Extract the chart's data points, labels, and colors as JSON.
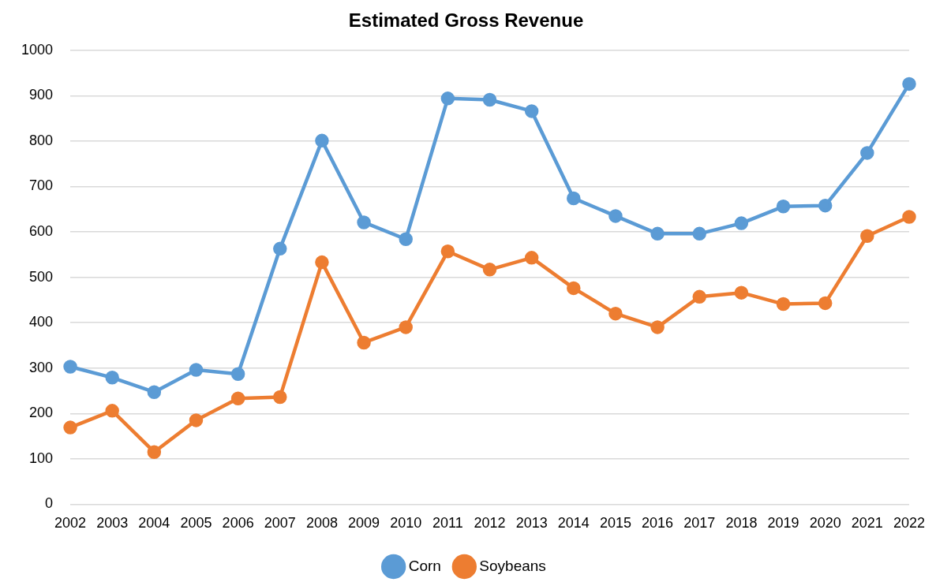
{
  "chart_data": {
    "type": "line",
    "title": "Estimated Gross Revenue",
    "categories": [
      "2002",
      "2003",
      "2004",
      "2005",
      "2006",
      "2007",
      "2008",
      "2009",
      "2010",
      "2011",
      "2012",
      "2013",
      "2014",
      "2015",
      "2016",
      "2017",
      "2018",
      "2019",
      "2020",
      "2021",
      "2022"
    ],
    "series": [
      {
        "name": "Corn",
        "color": "#5b9bd5",
        "values": [
          303,
          279,
          247,
          296,
          287,
          563,
          801,
          621,
          584,
          894,
          891,
          866,
          674,
          635,
          596,
          596,
          619,
          656,
          658,
          774,
          926
        ]
      },
      {
        "name": "Soybeans",
        "color": "#ed7d31",
        "values": [
          169,
          206,
          115,
          185,
          233,
          236,
          533,
          356,
          390,
          557,
          517,
          543,
          476,
          420,
          390,
          457,
          466,
          441,
          443,
          591,
          633
        ]
      }
    ],
    "ylim": [
      0,
      1000
    ],
    "yticks": [
      0,
      100,
      200,
      300,
      400,
      500,
      600,
      700,
      800,
      900,
      1000
    ],
    "grid": "y",
    "legend": "bottom",
    "marker": "circle",
    "line_style": "solid"
  }
}
